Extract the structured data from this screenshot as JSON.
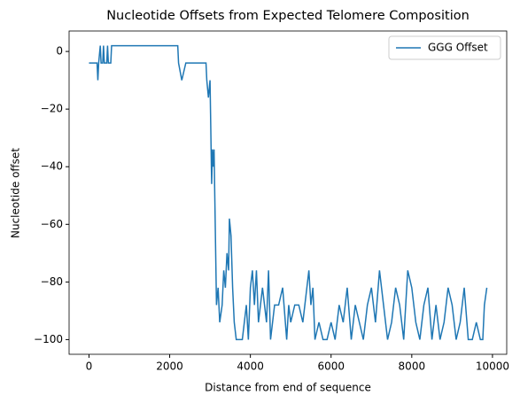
{
  "chart_data": {
    "type": "line",
    "title": "Nucleotide Offsets from Expected Telomere Composition",
    "xlabel": "Distance from end of sequence",
    "ylabel": "Nucleotide offset",
    "x": [
      0,
      200,
      220,
      240,
      280,
      300,
      340,
      360,
      380,
      440,
      460,
      480,
      540,
      560,
      2200,
      2220,
      2300,
      2400,
      2900,
      2920,
      2960,
      3000,
      3040,
      3060,
      3080,
      3100,
      3120,
      3160,
      3200,
      3240,
      3300,
      3340,
      3380,
      3420,
      3460,
      3480,
      3520,
      3560,
      3600,
      3650,
      3800,
      3850,
      3900,
      3950,
      4000,
      4050,
      4100,
      4150,
      4200,
      4300,
      4400,
      4450,
      4500,
      4600,
      4700,
      4800,
      4900,
      4950,
      5000,
      5100,
      5200,
      5300,
      5400,
      5450,
      5500,
      5550,
      5600,
      5700,
      5800,
      5900,
      6000,
      6100,
      6200,
      6300,
      6400,
      6500,
      6600,
      6700,
      6800,
      6900,
      7000,
      7100,
      7200,
      7300,
      7400,
      7500,
      7600,
      7700,
      7800,
      7900,
      8000,
      8100,
      8200,
      8300,
      8400,
      8500,
      8600,
      8700,
      8800,
      8900,
      9000,
      9100,
      9200,
      9300,
      9400,
      9500,
      9600,
      9700,
      9760,
      9800,
      9860
    ],
    "series": [
      {
        "name": "GGG Offset",
        "color": "#1f77b4",
        "values": [
          -4,
          -4,
          -10,
          -4,
          2,
          -4,
          -4,
          2,
          -4,
          -4,
          2,
          -4,
          -4,
          2,
          2,
          -4,
          -10,
          -4,
          -4,
          -10,
          -16,
          -10,
          -46,
          -34,
          -40,
          -34,
          -52,
          -88,
          -82,
          -94,
          -88,
          -76,
          -82,
          -70,
          -76,
          -58,
          -64,
          -82,
          -94,
          -100,
          -100,
          -94,
          -88,
          -100,
          -82,
          -76,
          -88,
          -76,
          -94,
          -82,
          -94,
          -76,
          -100,
          -88,
          -88,
          -82,
          -100,
          -88,
          -94,
          -88,
          -88,
          -94,
          -82,
          -76,
          -88,
          -82,
          -100,
          -94,
          -100,
          -100,
          -94,
          -100,
          -88,
          -94,
          -82,
          -100,
          -88,
          -94,
          -100,
          -88,
          -82,
          -94,
          -76,
          -88,
          -100,
          -94,
          -82,
          -88,
          -100,
          -76,
          -82,
          -94,
          -100,
          -88,
          -82,
          -100,
          -88,
          -100,
          -94,
          -82,
          -88,
          -100,
          -94,
          -82,
          -100,
          -100,
          -94,
          -100,
          -100,
          -88,
          -82
        ]
      }
    ],
    "xlim": [
      -493,
      10353
    ],
    "ylim": [
      -105.1,
      7.1
    ],
    "xticks": [
      0,
      2000,
      4000,
      6000,
      8000,
      10000
    ],
    "yticks": [
      {
        "value": 0,
        "label": "0"
      },
      {
        "value": -20,
        "label": "−20"
      },
      {
        "value": -40,
        "label": "−40"
      },
      {
        "value": -60,
        "label": "−60"
      },
      {
        "value": -80,
        "label": "−80"
      },
      {
        "value": -100,
        "label": "−100"
      }
    ],
    "legend": "upper right"
  }
}
